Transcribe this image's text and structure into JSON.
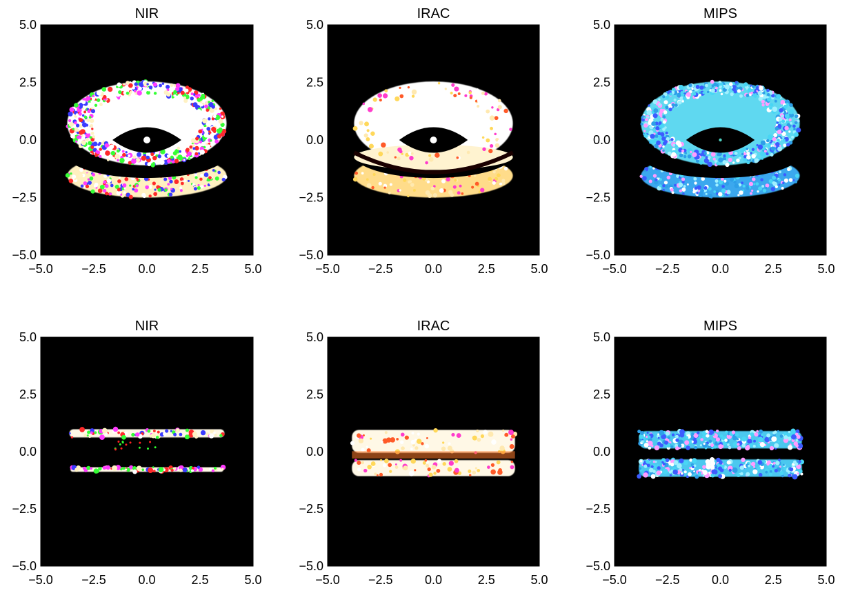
{
  "chart_data": [
    {
      "type": "heatmap",
      "title": "NIR",
      "view": "inclined",
      "band_colors": [
        "#ffffff",
        "#fff2c4",
        "#ff2a2a",
        "#ff3cff",
        "#36ff36",
        "#3c3cff"
      ],
      "xlim": [
        -5.0,
        5.0
      ],
      "ylim": [
        -5.0,
        5.0
      ],
      "xticks": [
        -5.0,
        -2.5,
        0.0,
        2.5,
        5.0
      ],
      "yticks": [
        -5.0,
        -2.5,
        0.0,
        2.5,
        5.0
      ],
      "xtick_labels": [
        "−5.0",
        "−2.5",
        "0.0",
        "2.5",
        "5.0"
      ],
      "ytick_labels": [
        "−5.0",
        "−2.5",
        "0.0",
        "2.5",
        "5.0"
      ],
      "background": "#000000"
    },
    {
      "type": "heatmap",
      "title": "IRAC",
      "view": "inclined",
      "band_colors": [
        "#ffffff",
        "#ffe9b0",
        "#ff5a28",
        "#ff3ccc",
        "#ffd85a"
      ],
      "xlim": [
        -5.0,
        5.0
      ],
      "ylim": [
        -5.0,
        5.0
      ],
      "xticks": [
        -5.0,
        -2.5,
        0.0,
        2.5,
        5.0
      ],
      "yticks": [
        -5.0,
        -2.5,
        0.0,
        2.5,
        5.0
      ],
      "xtick_labels": [
        "−5.0",
        "−2.5",
        "0.0",
        "2.5",
        "5.0"
      ],
      "ytick_labels": [
        "−5.0",
        "−2.5",
        "0.0",
        "2.5",
        "5.0"
      ],
      "background": "#000000"
    },
    {
      "type": "heatmap",
      "title": "MIPS",
      "view": "inclined",
      "band_colors": [
        "#49d6f5",
        "#2e9fe8",
        "#9ff0ff",
        "#ffffff",
        "#3c5cff",
        "#ff9cff"
      ],
      "xlim": [
        -5.0,
        5.0
      ],
      "ylim": [
        -5.0,
        5.0
      ],
      "xticks": [
        -5.0,
        -2.5,
        0.0,
        2.5,
        5.0
      ],
      "yticks": [
        -5.0,
        -2.5,
        0.0,
        2.5,
        5.0
      ],
      "xtick_labels": [
        "−5.0",
        "−2.5",
        "0.0",
        "2.5",
        "5.0"
      ],
      "ytick_labels": [
        "−5.0",
        "−2.5",
        "0.0",
        "2.5",
        "5.0"
      ],
      "background": "#000000"
    },
    {
      "type": "heatmap",
      "title": "NIR",
      "view": "edge-on",
      "band_colors": [
        "#ffffff",
        "#fff2c4",
        "#ff2a2a",
        "#ff3cff",
        "#36ff36",
        "#3c3cff"
      ],
      "xlim": [
        -5.0,
        5.0
      ],
      "ylim": [
        -5.0,
        5.0
      ],
      "xticks": [
        -5.0,
        -2.5,
        0.0,
        2.5,
        5.0
      ],
      "yticks": [
        -5.0,
        -2.5,
        0.0,
        2.5,
        5.0
      ],
      "xtick_labels": [
        "−5.0",
        "−2.5",
        "0.0",
        "2.5",
        "5.0"
      ],
      "ytick_labels": [
        "−5.0",
        "−2.5",
        "0.0",
        "2.5",
        "5.0"
      ],
      "background": "#000000"
    },
    {
      "type": "heatmap",
      "title": "IRAC",
      "view": "edge-on",
      "band_colors": [
        "#ffffff",
        "#ffe9b0",
        "#ff5a28",
        "#ff3ccc",
        "#ffd85a"
      ],
      "xlim": [
        -5.0,
        5.0
      ],
      "ylim": [
        -5.0,
        5.0
      ],
      "xticks": [
        -5.0,
        -2.5,
        0.0,
        2.5,
        5.0
      ],
      "yticks": [
        -5.0,
        -2.5,
        0.0,
        2.5,
        5.0
      ],
      "xtick_labels": [
        "−5.0",
        "−2.5",
        "0.0",
        "2.5",
        "5.0"
      ],
      "ytick_labels": [
        "−5.0",
        "−2.5",
        "0.0",
        "2.5",
        "5.0"
      ],
      "background": "#000000"
    },
    {
      "type": "heatmap",
      "title": "MIPS",
      "view": "edge-on",
      "band_colors": [
        "#49d6f5",
        "#2e9fe8",
        "#9ff0ff",
        "#ffffff",
        "#3c5cff",
        "#ff9cff"
      ],
      "xlim": [
        -5.0,
        5.0
      ],
      "ylim": [
        -5.0,
        5.0
      ],
      "xticks": [
        -5.0,
        -2.5,
        0.0,
        2.5,
        5.0
      ],
      "yticks": [
        -5.0,
        -2.5,
        0.0,
        2.5,
        5.0
      ],
      "xtick_labels": [
        "−5.0",
        "−2.5",
        "0.0",
        "2.5",
        "5.0"
      ],
      "ytick_labels": [
        "−5.0",
        "−2.5",
        "0.0",
        "2.5",
        "5.0"
      ],
      "background": "#000000"
    }
  ]
}
